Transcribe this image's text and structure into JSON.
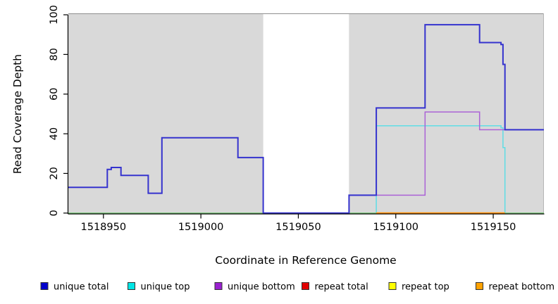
{
  "chart_data": {
    "type": "step-line",
    "title": "",
    "xlabel": "Coordinate in Reference Genome",
    "ylabel": "Read Coverage Depth",
    "xlim": [
      1518932,
      1519176
    ],
    "ylim": [
      0,
      100
    ],
    "xticks": [
      "1518950",
      "1519000",
      "1519050",
      "1519100",
      "1519150"
    ],
    "yticks": [
      "0",
      "20",
      "40",
      "60",
      "80",
      "100"
    ],
    "grid": false,
    "panel_background": "#D9D9D9",
    "gap_region": {
      "x0": 1519032,
      "x1": 1519076,
      "color": "#FFFFFF"
    },
    "series": [
      {
        "name": "repeat total",
        "line_color": "#E10000",
        "width": 1.5,
        "points": [
          [
            1518932,
            0
          ]
        ]
      },
      {
        "name": "repeat top",
        "line_color": "#FFFF00",
        "width": 1.5,
        "points": [
          [
            1518932,
            0
          ]
        ]
      },
      {
        "name": "unique top",
        "line_color": "#5FDDE5",
        "width": 1.5,
        "points": [
          [
            1518932,
            0
          ],
          [
            1519090,
            44
          ],
          [
            1519154,
            43
          ],
          [
            1519155,
            33
          ],
          [
            1519156,
            0
          ]
        ]
      },
      {
        "name": "unique bottom",
        "line_color": "#AB63D6",
        "width": 1.5,
        "points": [
          [
            1518932,
            0
          ],
          [
            1519076,
            9
          ],
          [
            1519115,
            51
          ],
          [
            1519143,
            42
          ]
        ]
      },
      {
        "name": "zero-overlap baseline left",
        "line_color": "#7FC87F",
        "width": 1.5,
        "points": [
          [
            1518932,
            0
          ]
        ],
        "x_end": 1519090
      },
      {
        "name": "zero-overlap baseline right",
        "line_color": "#7FC87F",
        "width": 1.5,
        "points": [
          [
            1519156,
            0
          ]
        ]
      },
      {
        "name": "repeat bottom",
        "line_color": "#FF8F00",
        "width": 2,
        "points": [
          [
            1519090,
            0
          ]
        ],
        "x_end": 1519156
      },
      {
        "name": "unique total",
        "line_color": "#3533CE",
        "width": 2,
        "points": [
          [
            1518932,
            13
          ],
          [
            1518952,
            22
          ],
          [
            1518954,
            23
          ],
          [
            1518959,
            19
          ],
          [
            1518973,
            10
          ],
          [
            1518980,
            38
          ],
          [
            1519019,
            28
          ],
          [
            1519032,
            0
          ],
          [
            1519076,
            9
          ],
          [
            1519090,
            53
          ],
          [
            1519115,
            95
          ],
          [
            1519143,
            86
          ],
          [
            1519154,
            85
          ],
          [
            1519155,
            75
          ],
          [
            1519156,
            42
          ]
        ]
      }
    ],
    "legend": [
      {
        "label": "unique total",
        "color": "#0000CD"
      },
      {
        "label": "unique top",
        "color": "#00E5E5"
      },
      {
        "label": "unique bottom",
        "color": "#9A20D0"
      },
      {
        "label": "repeat total",
        "color": "#E10000"
      },
      {
        "label": "repeat top",
        "color": "#FFFF00"
      },
      {
        "label": "repeat bottom",
        "color": "#FFA200"
      }
    ],
    "legend_position": "bottom"
  }
}
